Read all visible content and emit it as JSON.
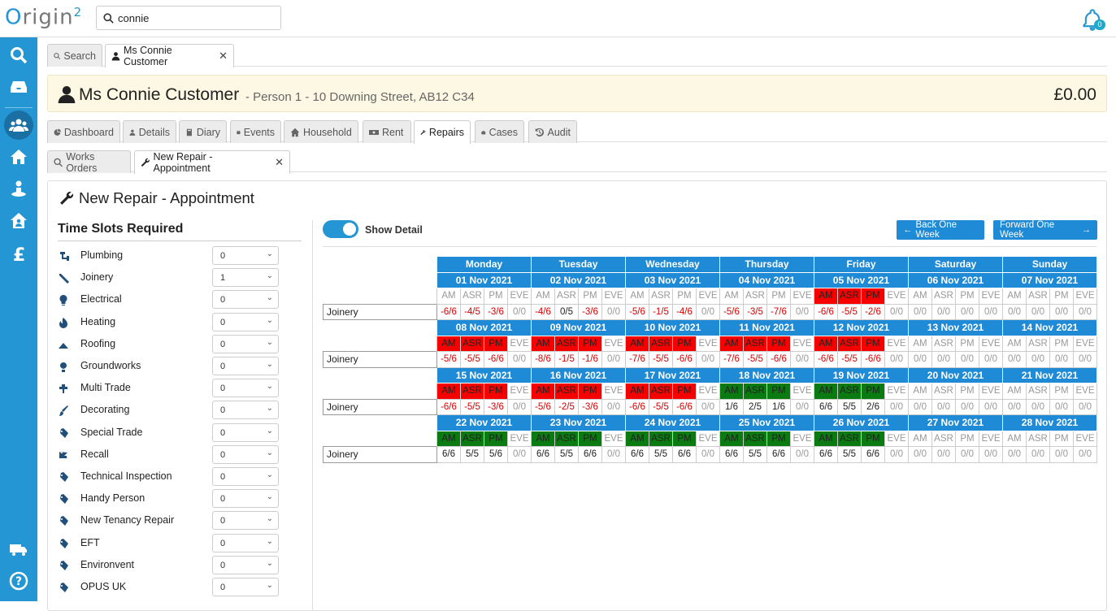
{
  "app": {
    "logo_text": "rigin",
    "logo_mark": "O",
    "logo_sup": "2",
    "brand_color": "#2396d3"
  },
  "search": {
    "value": "connie"
  },
  "notifications": {
    "count": "0"
  },
  "top_tabs": [
    {
      "label": "Search",
      "icon": "search-icon",
      "active": false
    },
    {
      "label": "Ms Connie Customer",
      "icon": "user-icon",
      "active": true,
      "closable": true
    }
  ],
  "banner": {
    "name": "Ms Connie Customer",
    "details": "- Person 1 - 10 Downing Street, AB12 C34",
    "balance": "£0.00"
  },
  "record_tabs": [
    {
      "label": "Dashboard",
      "icon": "pie-icon"
    },
    {
      "label": "Details",
      "icon": "user-icon"
    },
    {
      "label": "Diary",
      "icon": "book-icon"
    },
    {
      "label": "Events",
      "icon": "calendar-icon"
    },
    {
      "label": "Household",
      "icon": "home-icon"
    },
    {
      "label": "Rent",
      "icon": "money-icon"
    },
    {
      "label": "Repairs",
      "icon": "wrench-icon",
      "active": true
    },
    {
      "label": "Cases",
      "icon": "briefcase-icon"
    },
    {
      "label": "Audit",
      "icon": "history-icon"
    }
  ],
  "sub_tabs": [
    {
      "label": "Works Orders",
      "icon": "search-icon"
    },
    {
      "label": "New Repair - Appointment",
      "icon": "wrench-icon",
      "active": true,
      "closable": true
    }
  ],
  "panel": {
    "title": "New Repair - Appointment",
    "slots_title": "Time Slots Required"
  },
  "slots": [
    {
      "label": "Plumbing",
      "value": "0",
      "icon": "plumbing-icon"
    },
    {
      "label": "Joinery",
      "value": "1",
      "icon": "joinery-icon"
    },
    {
      "label": "Electrical",
      "value": "0",
      "icon": "bulb-icon"
    },
    {
      "label": "Heating",
      "value": "0",
      "icon": "flame-icon"
    },
    {
      "label": "Roofing",
      "value": "0",
      "icon": "roof-icon"
    },
    {
      "label": "Groundworks",
      "value": "0",
      "icon": "ground-icon"
    },
    {
      "label": "Multi Trade",
      "value": "0",
      "icon": "multitrade-icon"
    },
    {
      "label": "Decorating",
      "value": "0",
      "icon": "brush-icon"
    },
    {
      "label": "Special Trade",
      "value": "0",
      "icon": "tag-icon"
    },
    {
      "label": "Recall",
      "value": "0",
      "icon": "recall-icon"
    },
    {
      "label": "Technical Inspection",
      "value": "0",
      "icon": "tag-icon"
    },
    {
      "label": "Handy Person",
      "value": "0",
      "icon": "tag-icon"
    },
    {
      "label": "New Tenancy Repair",
      "value": "0",
      "icon": "tag-icon"
    },
    {
      "label": "EFT",
      "value": "0",
      "icon": "tag-icon"
    },
    {
      "label": "Environvent",
      "value": "0",
      "icon": "tag-icon"
    },
    {
      "label": "OPUS UK",
      "value": "0",
      "icon": "tag-icon"
    }
  ],
  "calendar": {
    "show_detail_label": "Show Detail",
    "show_detail_on": true,
    "back_label": "Back One Week",
    "forward_label": "Forward One Week",
    "days": [
      "Monday",
      "Tuesday",
      "Wednesday",
      "Thursday",
      "Friday",
      "Saturday",
      "Sunday"
    ],
    "slot_names": [
      "AM",
      "ASR",
      "PM",
      "EVE"
    ],
    "row_label": "Joinery",
    "weeks": [
      {
        "dates": [
          "01 Nov 2021",
          "02 Nov 2021",
          "03 Nov 2021",
          "04 Nov 2021",
          "05 Nov 2021",
          "06 Nov 2021",
          "07 Nov 2021"
        ],
        "status": [
          [
            "",
            "",
            "",
            ""
          ],
          [
            "",
            "",
            "",
            ""
          ],
          [
            "",
            "",
            "",
            ""
          ],
          [
            "",
            "",
            "",
            ""
          ],
          [
            "red",
            "red",
            "red",
            ""
          ],
          [
            "",
            "",
            "",
            ""
          ],
          [
            "",
            "",
            "",
            ""
          ]
        ],
        "values": [
          [
            "-6/6",
            "-4/5",
            "-3/6",
            "0/0"
          ],
          [
            "-4/6",
            "0/5",
            "-3/6",
            "0/0"
          ],
          [
            "-5/6",
            "-1/5",
            "-4/6",
            "0/0"
          ],
          [
            "-5/6",
            "-3/5",
            "-7/6",
            "0/0"
          ],
          [
            "-6/6",
            "-5/5",
            "-2/6",
            "0/0"
          ],
          [
            "0/0",
            "0/0",
            "0/0",
            "0/0"
          ],
          [
            "0/0",
            "0/0",
            "0/0",
            "0/0"
          ]
        ]
      },
      {
        "dates": [
          "08 Nov 2021",
          "09 Nov 2021",
          "10 Nov 2021",
          "11 Nov 2021",
          "12 Nov 2021",
          "13 Nov 2021",
          "14 Nov 2021"
        ],
        "status": [
          [
            "red",
            "red",
            "red",
            ""
          ],
          [
            "red",
            "red",
            "red",
            ""
          ],
          [
            "red",
            "red",
            "red",
            ""
          ],
          [
            "red",
            "red",
            "red",
            ""
          ],
          [
            "red",
            "red",
            "red",
            ""
          ],
          [
            "",
            "",
            "",
            ""
          ],
          [
            "",
            "",
            "",
            ""
          ]
        ],
        "values": [
          [
            "-5/6",
            "-5/5",
            "-6/6",
            "0/0"
          ],
          [
            "-8/6",
            "-1/5",
            "-1/6",
            "0/0"
          ],
          [
            "-7/6",
            "-5/5",
            "-6/6",
            "0/0"
          ],
          [
            "-7/6",
            "-5/5",
            "-6/6",
            "0/0"
          ],
          [
            "-6/6",
            "-5/5",
            "-6/6",
            "0/0"
          ],
          [
            "0/0",
            "0/0",
            "0/0",
            "0/0"
          ],
          [
            "0/0",
            "0/0",
            "0/0",
            "0/0"
          ]
        ]
      },
      {
        "dates": [
          "15 Nov 2021",
          "16 Nov 2021",
          "17 Nov 2021",
          "18 Nov 2021",
          "19 Nov 2021",
          "20 Nov 2021",
          "21 Nov 2021"
        ],
        "status": [
          [
            "red",
            "red",
            "red",
            ""
          ],
          [
            "red",
            "red",
            "red",
            ""
          ],
          [
            "red",
            "red",
            "red",
            ""
          ],
          [
            "green",
            "green",
            "green",
            ""
          ],
          [
            "green",
            "green",
            "green",
            ""
          ],
          [
            "",
            "",
            "",
            ""
          ],
          [
            "",
            "",
            "",
            ""
          ]
        ],
        "values": [
          [
            "-6/6",
            "-5/5",
            "-3/6",
            "0/0"
          ],
          [
            "-5/6",
            "-2/5",
            "-3/6",
            "0/0"
          ],
          [
            "-6/6",
            "-5/5",
            "-6/6",
            "0/0"
          ],
          [
            "1/6",
            "2/5",
            "1/6",
            "0/0"
          ],
          [
            "6/6",
            "5/5",
            "2/6",
            "0/0"
          ],
          [
            "0/0",
            "0/0",
            "0/0",
            "0/0"
          ],
          [
            "0/0",
            "0/0",
            "0/0",
            "0/0"
          ]
        ]
      },
      {
        "dates": [
          "22 Nov 2021",
          "23 Nov 2021",
          "24 Nov 2021",
          "25 Nov 2021",
          "26 Nov 2021",
          "27 Nov 2021",
          "28 Nov 2021"
        ],
        "status": [
          [
            "green",
            "green",
            "green",
            ""
          ],
          [
            "green",
            "green",
            "green",
            ""
          ],
          [
            "green",
            "green",
            "green",
            ""
          ],
          [
            "green",
            "green",
            "green",
            ""
          ],
          [
            "green",
            "green",
            "green",
            ""
          ],
          [
            "",
            "",
            "",
            ""
          ],
          [
            "",
            "",
            "",
            ""
          ]
        ],
        "values": [
          [
            "6/6",
            "5/5",
            "5/6",
            "0/0"
          ],
          [
            "6/6",
            "5/5",
            "6/6",
            "0/0"
          ],
          [
            "6/6",
            "5/5",
            "6/6",
            "0/0"
          ],
          [
            "6/6",
            "5/5",
            "6/6",
            "0/0"
          ],
          [
            "6/6",
            "5/5",
            "6/6",
            "0/0"
          ],
          [
            "0/0",
            "0/0",
            "0/0",
            "0/0"
          ],
          [
            "0/0",
            "0/0",
            "0/0",
            "0/0"
          ]
        ]
      }
    ]
  }
}
